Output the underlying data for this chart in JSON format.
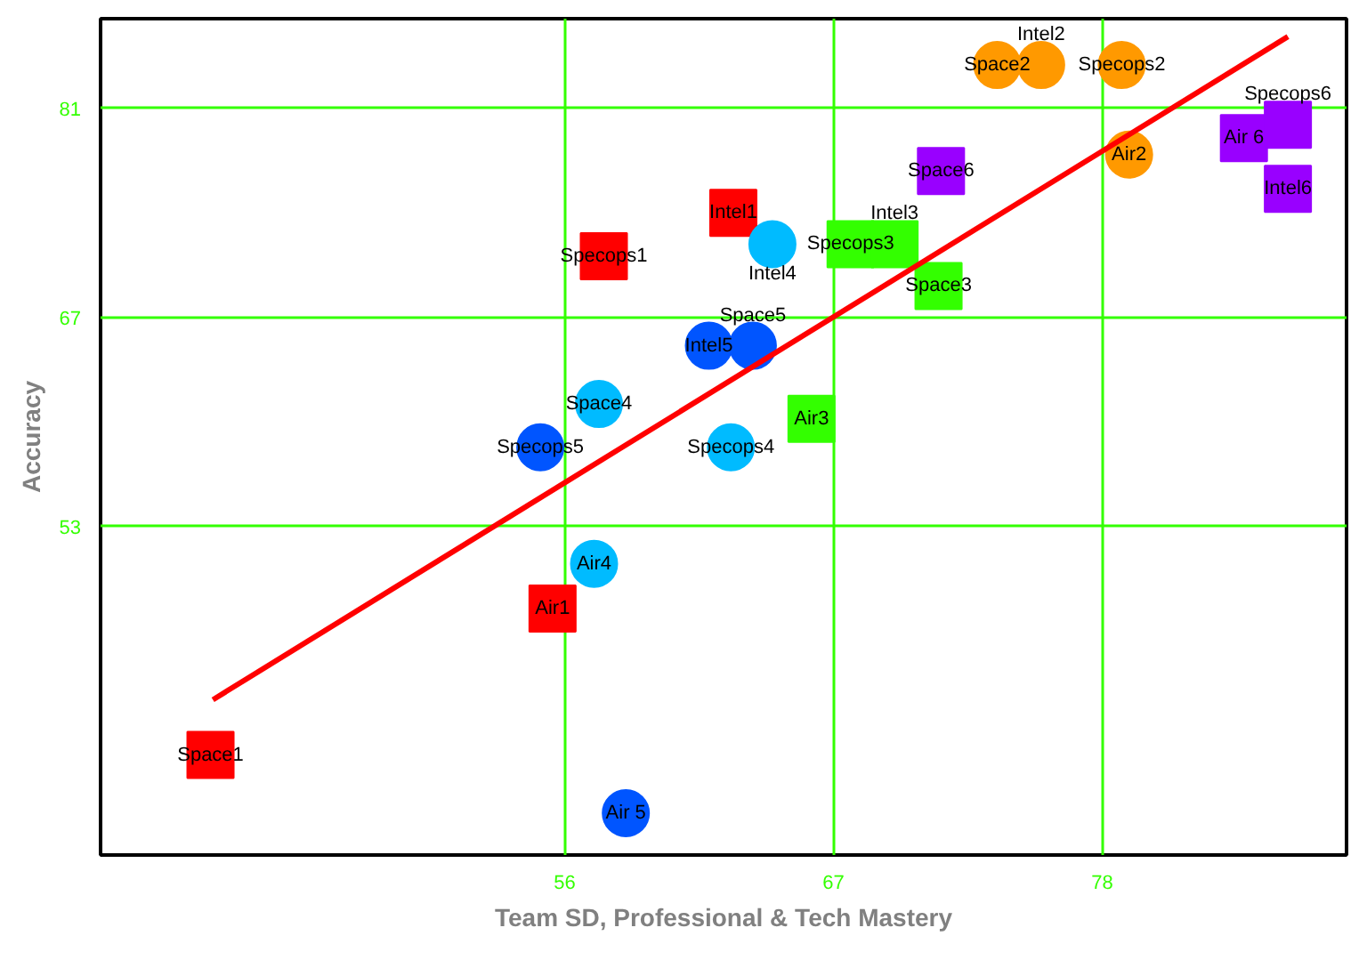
{
  "chart_data": {
    "type": "scatter",
    "xlabel": "Team SD, Professional & Tech Mastery",
    "ylabel": "Accuracy",
    "xlim": [
      37,
      88
    ],
    "ylim": [
      31,
      87
    ],
    "xticks": [
      56,
      67,
      78
    ],
    "yticks": [
      53,
      67,
      81
    ],
    "grid": true,
    "series": [
      {
        "color": "#ff0000",
        "marker": "square",
        "x": [
          41.5,
          55.5,
          57.6,
          62.9
        ],
        "values": [
          37.7,
          47.5,
          71.1,
          74.0
        ]
      },
      {
        "color": "#ff9900",
        "marker": "circle",
        "x": [
          73.7,
          75.5,
          78.8,
          79.1
        ],
        "values": [
          83.9,
          83.9,
          83.9,
          77.9
        ]
      },
      {
        "color": "#33ff00",
        "marker": "square",
        "x": [
          67.7,
          69.5,
          71.3,
          66.1
        ],
        "values": [
          71.9,
          71.9,
          69.1,
          60.2
        ]
      },
      {
        "color": "#00bbff",
        "marker": "circle",
        "x": [
          64.5,
          57.4,
          62.8,
          57.2
        ],
        "values": [
          71.9,
          61.2,
          58.3,
          50.5
        ]
      },
      {
        "color": "#0055ff",
        "marker": "circle",
        "x": [
          61.9,
          63.7,
          55.0,
          58.5
        ],
        "values": [
          65.1,
          65.1,
          58.3,
          33.8
        ]
      },
      {
        "color": "#9900ff",
        "marker": "square",
        "x": [
          71.4,
          83.8,
          85.6,
          85.6
        ],
        "values": [
          76.8,
          79.0,
          79.9,
          75.6
        ]
      },
      {
        "type": "line",
        "color": "#ff0000",
        "x": [
          41.6,
          85.6
        ],
        "values": [
          41.4,
          85.8
        ]
      }
    ],
    "annotations": [
      {
        "text": "Space1",
        "x": 41.5,
        "y": 37.7
      },
      {
        "text": "Air1",
        "x": 55.5,
        "y": 47.5
      },
      {
        "text": "Specops1",
        "x": 57.6,
        "y": 71.1
      },
      {
        "text": "Intel1",
        "x": 62.9,
        "y": 74.0
      },
      {
        "text": "Space2",
        "x": 73.7,
        "y": 83.9
      },
      {
        "text": "Intel2",
        "x": 75.5,
        "y": 83.9
      },
      {
        "text": "Specops2",
        "x": 78.8,
        "y": 83.9
      },
      {
        "text": "Air2",
        "x": 79.1,
        "y": 77.9
      },
      {
        "text": "Specops3",
        "x": 67.7,
        "y": 71.9
      },
      {
        "text": "Intel3",
        "x": 69.5,
        "y": 71.9
      },
      {
        "text": "Space3",
        "x": 71.3,
        "y": 69.1
      },
      {
        "text": "Air3",
        "x": 66.1,
        "y": 60.2
      },
      {
        "text": "Intel4",
        "x": 64.5,
        "y": 71.9
      },
      {
        "text": "Space4",
        "x": 57.4,
        "y": 61.2
      },
      {
        "text": "Specops4",
        "x": 62.8,
        "y": 58.3
      },
      {
        "text": "Air4",
        "x": 57.2,
        "y": 50.5
      },
      {
        "text": "Intel5",
        "x": 61.9,
        "y": 65.1
      },
      {
        "text": "Space5",
        "x": 63.7,
        "y": 65.1
      },
      {
        "text": "Specops5",
        "x": 55.0,
        "y": 58.3
      },
      {
        "text": "Air 5",
        "x": 58.5,
        "y": 33.8
      },
      {
        "text": "Space6",
        "x": 71.4,
        "y": 76.8
      },
      {
        "text": "Air 6",
        "x": 83.8,
        "y": 79.0
      },
      {
        "text": "Specops6",
        "x": 85.6,
        "y": 79.9
      },
      {
        "text": "Intel6",
        "x": 85.6,
        "y": 75.6
      }
    ]
  }
}
